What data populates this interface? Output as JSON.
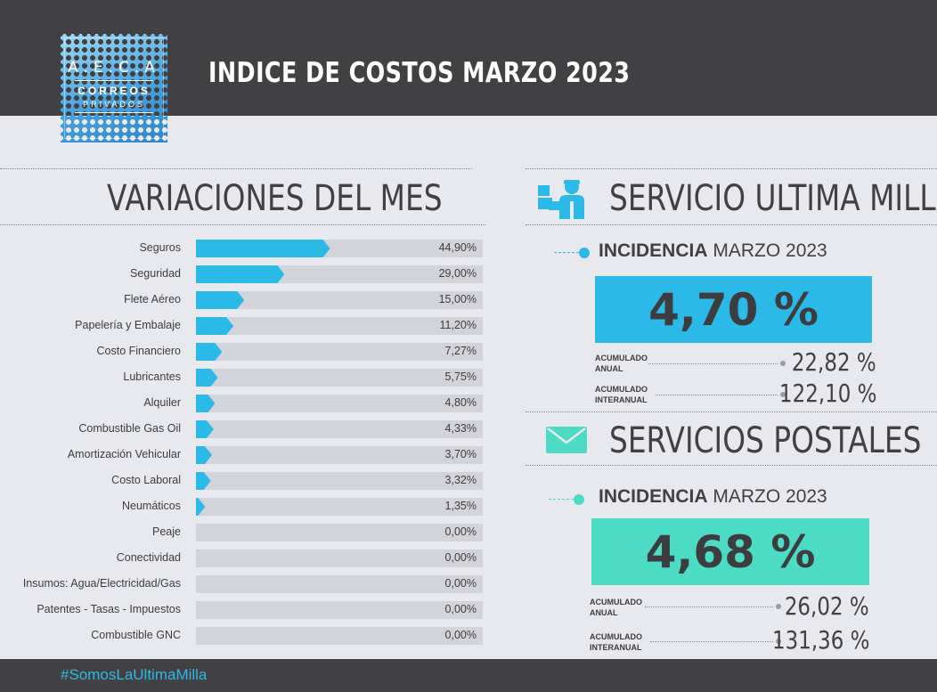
{
  "header": {
    "title": "INDICE DE COSTOS MARZO 2023"
  },
  "logo": {
    "line1": "A.E.C.A",
    "line2": "CORREOS",
    "line3": "PRIVADOS"
  },
  "left": {
    "title": "VARIACIONES DEL MES"
  },
  "colors": {
    "header_bg": "#414042",
    "bar_fill": "#2bbae8",
    "bar_track": "#d3d3da",
    "postal_accent": "#4cdbc4",
    "ultima_accent": "#2bbae8"
  },
  "chart_data": {
    "type": "bar",
    "orientation": "horizontal",
    "title": "VARIACIONES DEL MES",
    "categories": [
      "Seguros",
      "Seguridad",
      "Flete Aéreo",
      "Papelería y Embalaje",
      "Costo Financiero",
      "Lubricantes",
      "Alquiler",
      "Combustible Gas Oil",
      "Amortización Vehicular",
      "Costo Laboral",
      "Neumáticos",
      "Peaje",
      "Conectividad",
      "Insumos: Agua/Electricidad/Gas",
      "Patentes - Tasas - Impuestos",
      "Combustible GNC"
    ],
    "values": [
      44.9,
      29.0,
      15.0,
      11.2,
      7.27,
      5.75,
      4.8,
      4.33,
      3.7,
      3.32,
      1.35,
      0.0,
      0.0,
      0.0,
      0.0,
      0.0
    ],
    "value_labels": [
      "44,90%",
      "29,00%",
      "15,00%",
      "11,20%",
      "7,27%",
      "5,75%",
      "4,80%",
      "4,33%",
      "3,70%",
      "3,32%",
      "1,35%",
      "0,00%",
      "0,00%",
      "0,00%",
      "0,00%",
      "0,00%"
    ],
    "xlim": [
      0,
      100
    ],
    "grid": false,
    "legend": "none"
  },
  "ultima_milla": {
    "title": "SERVICIO ULTIMA MILLA",
    "icon": "delivery-person-icon",
    "incidencia_bold": "INCIDENCIA",
    "incidencia_rest": " MARZO 2023",
    "value": "4,70 %",
    "acumulado_anual_label_1": "ACUMULADO",
    "acumulado_anual_label_2": "ANUAL",
    "acumulado_anual": "22,82 %",
    "acumulado_interanual_label_1": "ACUMULADO",
    "acumulado_interanual_label_2": "INTERANUAL",
    "acumulado_interanual": "122,10 %"
  },
  "postales": {
    "title": "SERVICIOS POSTALES",
    "icon": "envelope-icon",
    "incidencia_bold": "INCIDENCIA",
    "incidencia_rest": " MARZO 2023",
    "value": "4,68 %",
    "acumulado_anual_label_1": "ACUMULADO",
    "acumulado_anual_label_2": "ANUAL",
    "acumulado_anual": "26,02 %",
    "acumulado_interanual_label_1": "ACUMULADO",
    "acumulado_interanual_label_2": "INTERANUAL",
    "acumulado_interanual": "131,36 %"
  },
  "footer": {
    "hashtag": "#SomosLaUltimaMilla"
  }
}
